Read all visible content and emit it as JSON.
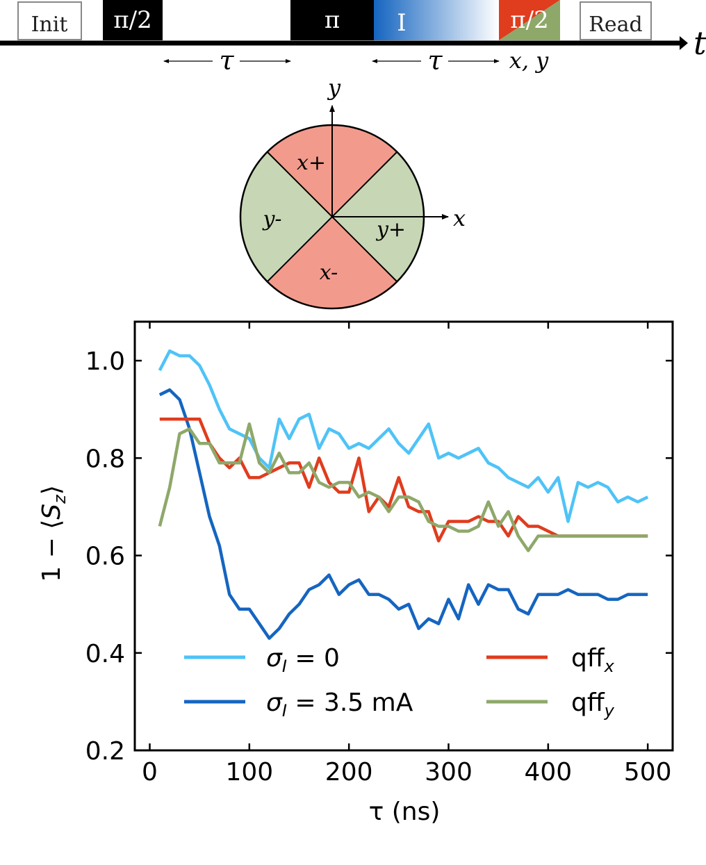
{
  "pulse_sequence": {
    "init_label": "Init",
    "pulse1_label": "π/2",
    "pulse2_label": "π",
    "current_label": "I",
    "pulse3_label": "π/2",
    "read_label": "Read",
    "time_axis_label": "t",
    "tau_label_1": "τ",
    "tau_label_2": "τ",
    "phase_label": "x, y",
    "colors": {
      "pulse": "#000000",
      "current": "#1565c0",
      "red": "#e03c1e",
      "green": "#8ea86a"
    }
  },
  "phase_diagram": {
    "y_axis_label": "y",
    "x_axis_label": "x",
    "sectors": {
      "top": "x+",
      "bottom": "x-",
      "left": "y-",
      "right": "y+"
    },
    "colors": {
      "x_sectors": "#f29b8c",
      "y_sectors": "#c7d6b4"
    }
  },
  "chart_data": {
    "type": "line",
    "xlabel": "τ (ns)",
    "ylabel": "1 − ⟨S_z⟩",
    "xlim": [
      -15,
      525
    ],
    "ylim": [
      0.2,
      1.08
    ],
    "xticks": [
      0,
      100,
      200,
      300,
      400,
      500
    ],
    "yticks": [
      0.2,
      0.4,
      0.6,
      0.8,
      1.0
    ],
    "grid": false,
    "legend_position": "lower",
    "x": [
      10,
      20,
      30,
      40,
      50,
      60,
      70,
      80,
      90,
      100,
      110,
      120,
      130,
      140,
      150,
      160,
      170,
      180,
      190,
      200,
      210,
      220,
      230,
      240,
      250,
      260,
      270,
      280,
      290,
      300,
      310,
      320,
      330,
      340,
      350,
      360,
      370,
      380,
      390,
      400,
      410,
      420,
      430,
      440,
      450,
      460,
      470,
      480,
      490,
      500
    ],
    "series": [
      {
        "name": "σ_I = 0",
        "color": "#4fc3f7",
        "values": [
          0.98,
          1.02,
          1.01,
          1.01,
          0.99,
          0.95,
          0.9,
          0.86,
          0.85,
          0.84,
          0.8,
          0.78,
          0.88,
          0.84,
          0.88,
          0.89,
          0.82,
          0.86,
          0.85,
          0.82,
          0.83,
          0.82,
          0.84,
          0.86,
          0.83,
          0.81,
          0.84,
          0.87,
          0.8,
          0.81,
          0.8,
          0.81,
          0.82,
          0.79,
          0.78,
          0.76,
          0.75,
          0.74,
          0.76,
          0.73,
          0.76,
          0.67,
          0.75,
          0.74,
          0.75,
          0.74,
          0.71,
          0.72,
          0.71,
          0.72
        ]
      },
      {
        "name": "σ_I = 3.5 mA",
        "color": "#1565c0",
        "values": [
          0.93,
          0.94,
          0.92,
          0.86,
          0.77,
          0.68,
          0.62,
          0.52,
          0.49,
          0.49,
          0.46,
          0.43,
          0.45,
          0.48,
          0.5,
          0.53,
          0.54,
          0.56,
          0.52,
          0.54,
          0.55,
          0.52,
          0.52,
          0.51,
          0.49,
          0.5,
          0.45,
          0.47,
          0.46,
          0.51,
          0.47,
          0.54,
          0.5,
          0.54,
          0.53,
          0.53,
          0.49,
          0.48,
          0.52,
          0.52,
          0.52,
          0.53,
          0.52,
          0.52,
          0.52,
          0.51,
          0.51,
          0.52,
          0.52,
          0.52
        ]
      },
      {
        "name": "qff_x",
        "color": "#e03c1e",
        "values": [
          0.88,
          0.88,
          0.88,
          0.88,
          0.88,
          0.83,
          0.8,
          0.78,
          0.8,
          0.76,
          0.76,
          0.77,
          0.78,
          0.79,
          0.79,
          0.74,
          0.8,
          0.75,
          0.73,
          0.73,
          0.8,
          0.69,
          0.72,
          0.7,
          0.76,
          0.7,
          0.69,
          0.69,
          0.63,
          0.67,
          0.67,
          0.67,
          0.68,
          0.67,
          0.67,
          0.64,
          0.68,
          0.66,
          0.66,
          0.65,
          0.64,
          0.64,
          0.64,
          0.64,
          0.64,
          0.64,
          0.64,
          0.64,
          0.64,
          0.64
        ]
      },
      {
        "name": "qff_y",
        "color": "#8ea86a",
        "values": [
          0.66,
          0.74,
          0.85,
          0.86,
          0.83,
          0.83,
          0.79,
          0.79,
          0.79,
          0.87,
          0.79,
          0.77,
          0.81,
          0.77,
          0.77,
          0.79,
          0.75,
          0.74,
          0.75,
          0.75,
          0.72,
          0.73,
          0.72,
          0.69,
          0.72,
          0.72,
          0.71,
          0.67,
          0.66,
          0.66,
          0.65,
          0.65,
          0.66,
          0.71,
          0.66,
          0.69,
          0.64,
          0.61,
          0.64,
          0.64,
          0.64,
          0.64,
          0.64,
          0.64,
          0.64,
          0.64,
          0.64,
          0.64,
          0.64,
          0.64
        ]
      }
    ]
  }
}
